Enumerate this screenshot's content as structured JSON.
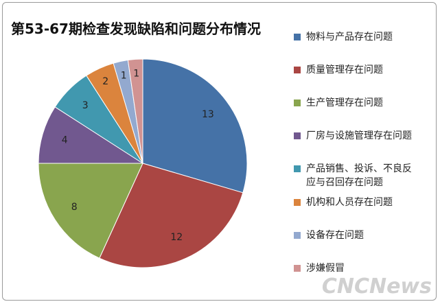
{
  "chart_data": {
    "type": "pie",
    "title": "第53-67期检查发现缺陷和问题分布情况",
    "categories": [
      "物料与产品存在问题",
      "质量管理存在问题",
      "生产管理存在问题",
      "厂房与设施管理存在问题",
      "产品销售、投诉、不良反应与召回存在问题",
      "机构和人员存在问题",
      "设备存在问题",
      "涉嫌假冒"
    ],
    "values": [
      13,
      12,
      8,
      4,
      3,
      2,
      1,
      1
    ],
    "colors": [
      "#4572a7",
      "#aa4643",
      "#89a54e",
      "#71588f",
      "#4198af",
      "#db843d",
      "#93a9cf",
      "#d19392"
    ],
    "legend": "right",
    "watermark": "CNCNews"
  }
}
